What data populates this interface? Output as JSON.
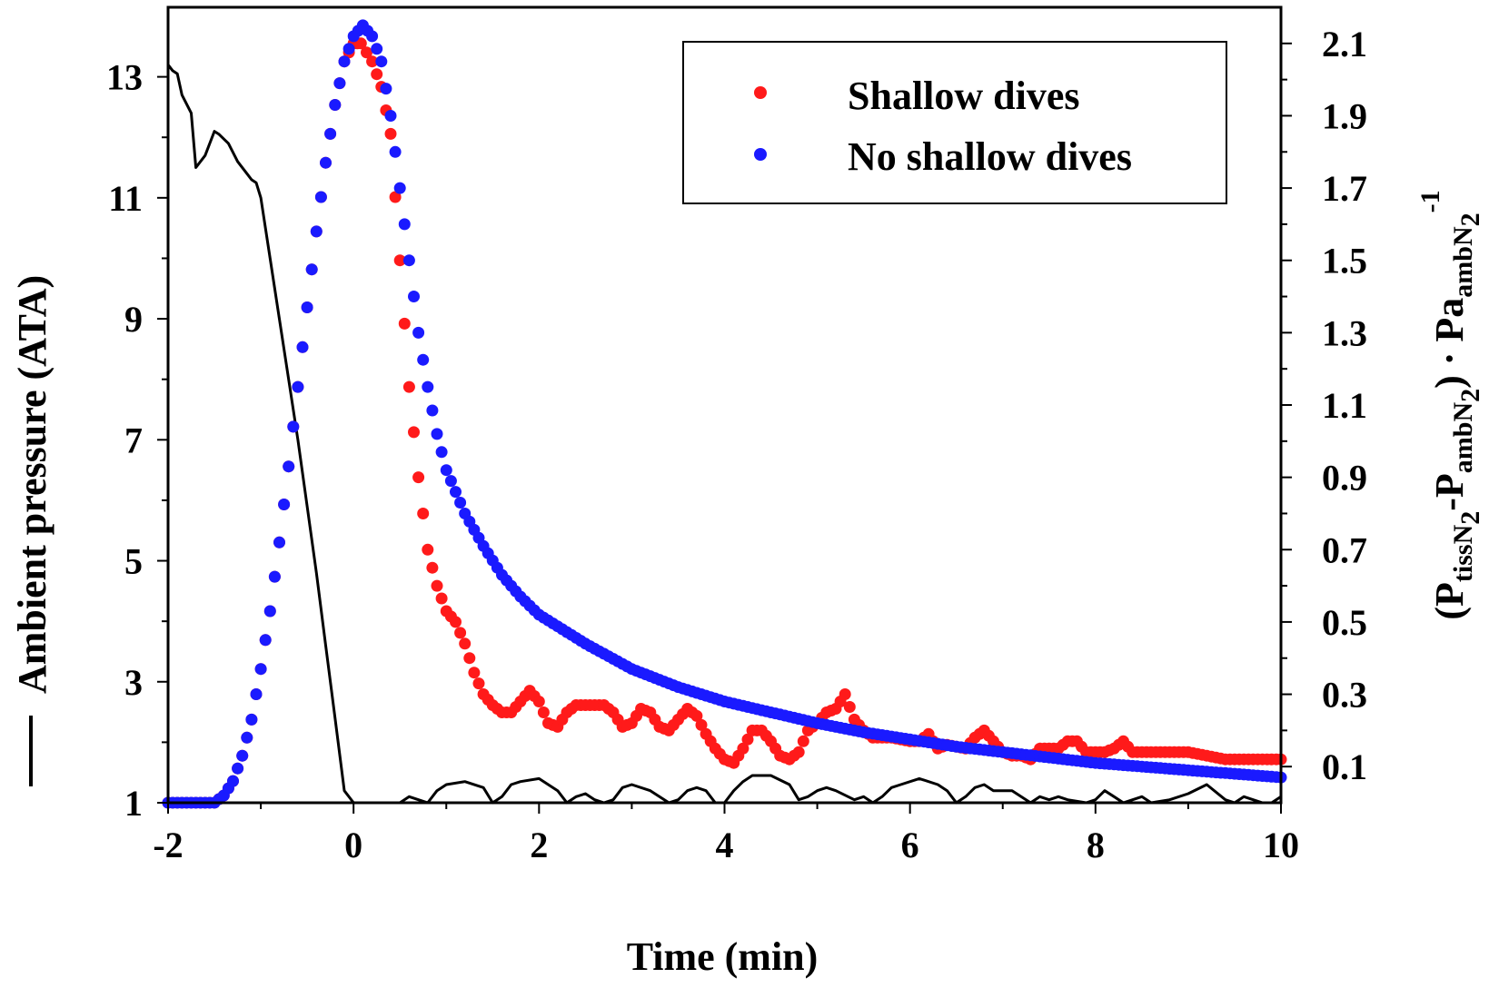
{
  "chart_data": {
    "type": "scatter",
    "xlabel": "Time (min)",
    "ylabel_left": "Ambient pressure (ATA)",
    "ylabel_right": {
      "open": "(P",
      "sub1": "tissN",
      "sub1b": "2",
      "mid": "-P",
      "sub2": "ambN",
      "sub2b": "2",
      "close": ") · Pa",
      "sub3": "ambN",
      "sub3b": "2",
      "sup": "-1"
    },
    "xlim": [
      -2,
      10
    ],
    "ylim_left": [
      1,
      14.15
    ],
    "ylim_right": [
      0,
      2.2
    ],
    "xticks": [
      "-2",
      "0",
      "2",
      "4",
      "6",
      "8",
      "10"
    ],
    "xtick_values": [
      -2,
      0,
      2,
      4,
      6,
      8,
      10
    ],
    "yticks_left": [
      "1",
      "3",
      "5",
      "7",
      "9",
      "11",
      "13"
    ],
    "ytick_values_left": [
      1,
      3,
      5,
      7,
      9,
      11,
      13
    ],
    "yticks_right": [
      "0.1",
      "0.3",
      "0.5",
      "0.7",
      "0.9",
      "1.1",
      "1.3",
      "1.5",
      "1.7",
      "1.9",
      "2.1"
    ],
    "ytick_values_right": [
      0.1,
      0.3,
      0.5,
      0.7,
      0.9,
      1.1,
      1.3,
      1.5,
      1.7,
      1.9,
      2.1
    ],
    "legend": {
      "position": "top-right"
    },
    "series": [
      {
        "name": "Ambient pressure",
        "kind": "line",
        "axis": "left",
        "color": "#000000",
        "x": [
          -2.0,
          -1.95,
          -1.9,
          -1.85,
          -1.75,
          -1.7,
          -1.6,
          -1.55,
          -1.5,
          -1.45,
          -1.35,
          -1.25,
          -1.15,
          -1.1,
          -1.05,
          -1.0,
          -0.9,
          -0.8,
          -0.7,
          -0.6,
          -0.5,
          -0.4,
          -0.3,
          -0.2,
          -0.1,
          0.0,
          0.1,
          0.3,
          0.5,
          0.6,
          0.7,
          0.8,
          0.9,
          1.0,
          1.2,
          1.4,
          1.5,
          1.6,
          1.7,
          1.8,
          2.0,
          2.2,
          2.3,
          2.4,
          2.5,
          2.6,
          2.7,
          2.8,
          2.9,
          3.0,
          3.2,
          3.4,
          3.5,
          3.6,
          3.7,
          3.8,
          3.9,
          4.0,
          4.1,
          4.2,
          4.3,
          4.5,
          4.7,
          4.8,
          4.9,
          5.0,
          5.1,
          5.2,
          5.4,
          5.5,
          5.6,
          5.7,
          5.8,
          5.9,
          6.1,
          6.3,
          6.4,
          6.5,
          6.6,
          6.7,
          6.8,
          6.9,
          7.1,
          7.3,
          7.4,
          7.5,
          7.6,
          7.7,
          7.9,
          8.0,
          8.1,
          8.2,
          8.3,
          8.4,
          8.5,
          8.6,
          8.8,
          9.0,
          9.2,
          9.4,
          9.5,
          9.6,
          9.7,
          9.8,
          9.9,
          10.0
        ],
        "y": [
          13.2,
          13.1,
          13.05,
          12.7,
          12.4,
          11.5,
          11.7,
          11.9,
          12.1,
          12.05,
          11.9,
          11.6,
          11.4,
          11.3,
          11.25,
          11.0,
          10.0,
          9.0,
          8.0,
          7.0,
          5.9,
          4.8,
          3.6,
          2.4,
          1.2,
          1.0,
          1.0,
          1.0,
          1.0,
          1.1,
          1.05,
          1.0,
          1.2,
          1.3,
          1.35,
          1.25,
          1.0,
          1.1,
          1.3,
          1.35,
          1.4,
          1.2,
          1.0,
          1.1,
          1.15,
          1.05,
          1.0,
          1.05,
          1.25,
          1.3,
          1.2,
          1.0,
          1.05,
          1.2,
          1.25,
          1.2,
          1.0,
          1.0,
          1.2,
          1.35,
          1.45,
          1.45,
          1.3,
          1.05,
          1.1,
          1.2,
          1.25,
          1.2,
          1.05,
          1.1,
          1.0,
          1.1,
          1.25,
          1.3,
          1.4,
          1.3,
          1.2,
          1.0,
          1.1,
          1.25,
          1.3,
          1.2,
          1.2,
          1.0,
          1.1,
          1.05,
          1.1,
          1.05,
          1.0,
          1.05,
          1.2,
          1.1,
          1.0,
          1.05,
          1.1,
          1.0,
          1.05,
          1.15,
          1.3,
          1.05,
          1.0,
          1.1,
          1.05,
          1.0,
          1.0,
          1.1
        ]
      },
      {
        "name": "Shallow dives",
        "kind": "points",
        "axis": "right",
        "color": "#ff1a1a",
        "x": [
          -2.0,
          -1.5,
          -1.4,
          -1.3,
          -1.2,
          -1.1,
          -1.0,
          -0.9,
          -0.8,
          -0.7,
          -0.6,
          -0.5,
          -0.4,
          -0.3,
          -0.2,
          -0.1,
          0.0,
          0.08,
          0.2,
          0.3,
          0.4,
          0.5,
          0.6,
          0.7,
          0.8,
          0.9,
          1.0,
          1.1,
          1.2,
          1.3,
          1.4,
          1.5,
          1.6,
          1.7,
          1.8,
          1.9,
          2.0,
          2.1,
          2.2,
          2.3,
          2.4,
          2.5,
          2.6,
          2.7,
          2.8,
          2.9,
          3.0,
          3.1,
          3.2,
          3.3,
          3.4,
          3.5,
          3.6,
          3.7,
          3.8,
          3.9,
          4.0,
          4.1,
          4.2,
          4.3,
          4.4,
          4.5,
          4.6,
          4.7,
          4.8,
          4.9,
          5.0,
          5.1,
          5.2,
          5.3,
          5.4,
          5.5,
          5.6,
          5.8,
          6.0,
          6.1,
          6.2,
          6.3,
          6.4,
          6.6,
          6.7,
          6.8,
          6.9,
          7.0,
          7.1,
          7.2,
          7.3,
          7.4,
          7.6,
          7.7,
          7.8,
          7.9,
          8.0,
          8.1,
          8.2,
          8.3,
          8.4,
          8.5,
          8.6,
          8.8,
          9.0,
          9.2,
          9.4,
          9.6,
          9.8,
          10.0
        ],
        "y": [
          0.0,
          0.0,
          0.02,
          0.06,
          0.13,
          0.23,
          0.37,
          0.53,
          0.72,
          0.93,
          1.15,
          1.37,
          1.58,
          1.77,
          1.93,
          2.05,
          2.1,
          2.1,
          2.05,
          1.98,
          1.85,
          1.5,
          1.15,
          0.9,
          0.7,
          0.6,
          0.53,
          0.5,
          0.44,
          0.36,
          0.3,
          0.27,
          0.25,
          0.25,
          0.28,
          0.31,
          0.28,
          0.22,
          0.21,
          0.25,
          0.27,
          0.27,
          0.27,
          0.27,
          0.25,
          0.21,
          0.22,
          0.26,
          0.25,
          0.21,
          0.2,
          0.23,
          0.26,
          0.24,
          0.19,
          0.15,
          0.12,
          0.11,
          0.15,
          0.2,
          0.2,
          0.17,
          0.13,
          0.12,
          0.14,
          0.2,
          0.22,
          0.25,
          0.26,
          0.3,
          0.23,
          0.2,
          0.18,
          0.18,
          0.17,
          0.17,
          0.19,
          0.15,
          0.16,
          0.15,
          0.18,
          0.2,
          0.17,
          0.14,
          0.13,
          0.13,
          0.12,
          0.15,
          0.15,
          0.17,
          0.17,
          0.14,
          0.14,
          0.14,
          0.15,
          0.17,
          0.14,
          0.14,
          0.14,
          0.14,
          0.14,
          0.13,
          0.12,
          0.12,
          0.12,
          0.12
        ]
      },
      {
        "name": "No shallow dives",
        "kind": "points",
        "axis": "right",
        "color": "#1a1aff",
        "x": [
          -2.0,
          -1.5,
          -1.4,
          -1.3,
          -1.2,
          -1.1,
          -1.0,
          -0.9,
          -0.8,
          -0.7,
          -0.6,
          -0.5,
          -0.4,
          -0.3,
          -0.2,
          -0.1,
          0.0,
          0.1,
          0.2,
          0.3,
          0.4,
          0.5,
          0.6,
          0.7,
          0.8,
          0.9,
          1.0,
          1.2,
          1.4,
          1.6,
          1.8,
          2.0,
          2.5,
          3.0,
          3.5,
          4.0,
          4.5,
          5.0,
          5.5,
          6.0,
          6.5,
          7.0,
          7.5,
          8.0,
          8.5,
          9.0,
          9.5,
          10.0
        ],
        "y": [
          0.0,
          0.0,
          0.02,
          0.06,
          0.13,
          0.23,
          0.37,
          0.53,
          0.72,
          0.93,
          1.15,
          1.37,
          1.58,
          1.77,
          1.93,
          2.05,
          2.12,
          2.15,
          2.12,
          2.05,
          1.9,
          1.7,
          1.5,
          1.3,
          1.15,
          1.02,
          0.92,
          0.8,
          0.71,
          0.63,
          0.57,
          0.52,
          0.44,
          0.37,
          0.32,
          0.28,
          0.25,
          0.22,
          0.195,
          0.175,
          0.155,
          0.14,
          0.125,
          0.11,
          0.1,
          0.09,
          0.08,
          0.07
        ]
      }
    ]
  }
}
